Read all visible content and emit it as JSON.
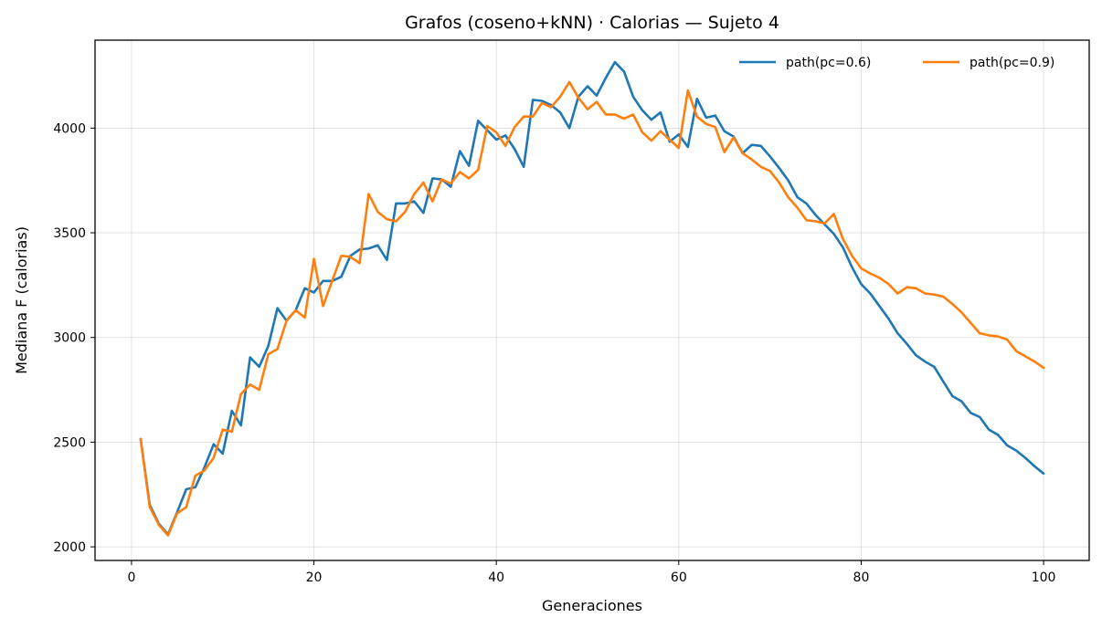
{
  "chart_data": {
    "type": "line",
    "title": "Grafos (coseno+kNN) · Calorias — Sujeto 4",
    "xlabel": "Generaciones",
    "ylabel": "Mediana F (calorias)",
    "xlim": [
      -4,
      105
    ],
    "ylim": [
      1935,
      4420
    ],
    "xticks": [
      0,
      20,
      40,
      60,
      80,
      100
    ],
    "yticks": [
      2000,
      2500,
      3000,
      3500,
      4000
    ],
    "grid": true,
    "legend_position": "top-right",
    "series": [
      {
        "name": "path(pc=0.6)",
        "color": "#1f77b4",
        "x": [
          1,
          2,
          3,
          4,
          5,
          6,
          7,
          8,
          9,
          10,
          11,
          12,
          13,
          14,
          15,
          16,
          17,
          18,
          19,
          20,
          21,
          22,
          23,
          24,
          25,
          26,
          27,
          28,
          29,
          30,
          31,
          32,
          33,
          34,
          35,
          36,
          37,
          38,
          39,
          40,
          41,
          42,
          43,
          44,
          45,
          46,
          47,
          48,
          49,
          50,
          51,
          52,
          53,
          54,
          55,
          56,
          57,
          58,
          59,
          60,
          61,
          62,
          63,
          64,
          65,
          66,
          67,
          68,
          69,
          70,
          71,
          72,
          73,
          74,
          75,
          76,
          77,
          78,
          79,
          80,
          81,
          82,
          83,
          84,
          85,
          86,
          87,
          88,
          89,
          90,
          91,
          92,
          93,
          94,
          95,
          96,
          97,
          98,
          99,
          100
        ],
        "values": [
          2515,
          2200,
          2110,
          2060,
          2165,
          2275,
          2285,
          2380,
          2490,
          2445,
          2650,
          2580,
          2905,
          2860,
          2960,
          3140,
          3080,
          3130,
          3235,
          3215,
          3270,
          3270,
          3290,
          3390,
          3420,
          3425,
          3440,
          3370,
          3640,
          3640,
          3650,
          3595,
          3760,
          3755,
          3720,
          3890,
          3820,
          4035,
          3990,
          3945,
          3965,
          3900,
          3815,
          4135,
          4130,
          4110,
          4075,
          4000,
          4150,
          4200,
          4155,
          4240,
          4315,
          4270,
          4150,
          4085,
          4040,
          4075,
          3935,
          3970,
          3910,
          4140,
          4050,
          4060,
          3985,
          3960,
          3880,
          3920,
          3915,
          3865,
          3810,
          3750,
          3670,
          3640,
          3585,
          3540,
          3495,
          3430,
          3335,
          3255,
          3210,
          3150,
          3090,
          3020,
          2970,
          2915,
          2885,
          2860,
          2790,
          2720,
          2695,
          2640,
          2620,
          2560,
          2535,
          2485,
          2460,
          2425,
          2385,
          2350
        ]
      },
      {
        "name": "path(pc=0.9)",
        "color": "#ff7f0e",
        "x": [
          1,
          2,
          3,
          4,
          5,
          6,
          7,
          8,
          9,
          10,
          11,
          12,
          13,
          14,
          15,
          16,
          17,
          18,
          19,
          20,
          21,
          22,
          23,
          24,
          25,
          26,
          27,
          28,
          29,
          30,
          31,
          32,
          33,
          34,
          35,
          36,
          37,
          38,
          39,
          40,
          41,
          42,
          43,
          44,
          45,
          46,
          47,
          48,
          49,
          50,
          51,
          52,
          53,
          54,
          55,
          56,
          57,
          58,
          59,
          60,
          61,
          62,
          63,
          64,
          65,
          66,
          67,
          68,
          69,
          70,
          71,
          72,
          73,
          74,
          75,
          76,
          77,
          78,
          79,
          80,
          81,
          82,
          83,
          84,
          85,
          86,
          87,
          88,
          89,
          90,
          91,
          92,
          93,
          94,
          95,
          96,
          97,
          98,
          99,
          100
        ],
        "values": [
          2515,
          2190,
          2105,
          2055,
          2160,
          2190,
          2340,
          2365,
          2425,
          2560,
          2550,
          2730,
          2775,
          2750,
          2920,
          2945,
          3080,
          3130,
          3095,
          3375,
          3150,
          3270,
          3390,
          3385,
          3355,
          3685,
          3600,
          3565,
          3555,
          3600,
          3685,
          3740,
          3650,
          3755,
          3735,
          3790,
          3760,
          3800,
          4010,
          3980,
          3915,
          4005,
          4055,
          4055,
          4120,
          4100,
          4150,
          4220,
          4145,
          4090,
          4125,
          4065,
          4065,
          4045,
          4065,
          3980,
          3940,
          3985,
          3945,
          3905,
          4180,
          4055,
          4020,
          4005,
          3885,
          3955,
          3880,
          3850,
          3815,
          3795,
          3740,
          3670,
          3620,
          3560,
          3555,
          3545,
          3590,
          3470,
          3390,
          3330,
          3305,
          3285,
          3255,
          3210,
          3240,
          3235,
          3210,
          3205,
          3195,
          3160,
          3120,
          3070,
          3020,
          3010,
          3005,
          2990,
          2935,
          2910,
          2885,
          2855
        ]
      }
    ]
  }
}
